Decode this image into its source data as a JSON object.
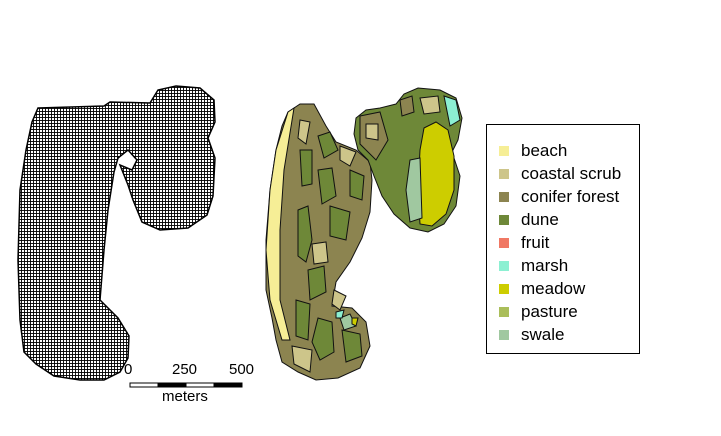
{
  "legend": {
    "items": [
      {
        "label": "beach",
        "color": "#F6EE96"
      },
      {
        "label": "coastal scrub",
        "color": "#CDC58A"
      },
      {
        "label": "conifer forest",
        "color": "#8C8450"
      },
      {
        "label": "dune",
        "color": "#6E8838"
      },
      {
        "label": "fruit",
        "color": "#F07864"
      },
      {
        "label": "marsh",
        "color": "#8CF0D2"
      },
      {
        "label": "meadow",
        "color": "#CDCD00"
      },
      {
        "label": "pasture",
        "color": "#AABE5A"
      },
      {
        "label": "swale",
        "color": "#A0C8A0"
      }
    ]
  },
  "scale_bar": {
    "ticks": [
      "0",
      "250",
      "500"
    ],
    "unit": "meters"
  },
  "grid_fill_color": "#000000"
}
